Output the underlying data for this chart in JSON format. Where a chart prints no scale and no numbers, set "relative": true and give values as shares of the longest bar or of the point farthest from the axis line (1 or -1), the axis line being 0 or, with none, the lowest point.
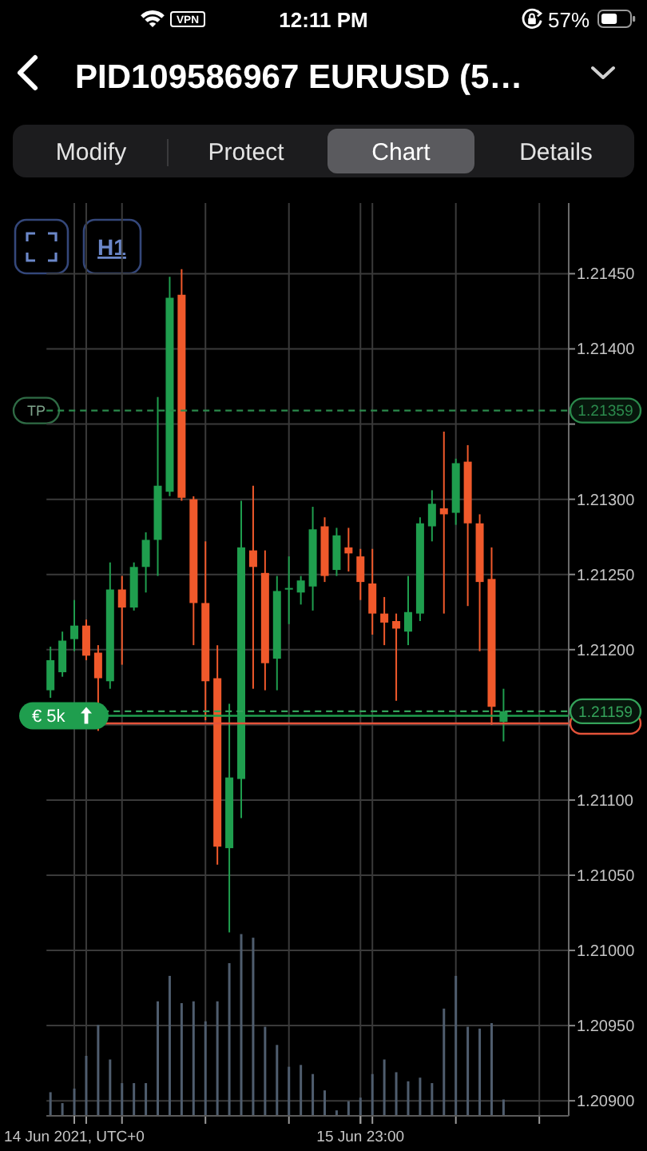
{
  "chart_data": [
    {
      "type": "candlestick",
      "title": "PID109586967 EURUSD (5…",
      "annotations": [
        "12:11 PM",
        "VPN",
        "57%",
        "Modify",
        "Protect",
        "Chart",
        "Details",
        "H1",
        {
          "text": "TP",
          "y": 1.21359
        }
      ],
      "x": [
        "2021-06-14T21:00",
        "2021-06-14T22:00",
        "2021-06-14T23:00",
        "2021-06-15T00:00",
        "2021-06-15T01:00",
        "2021-06-15T02:00",
        "2021-06-15T03:00",
        "2021-06-15T04:00",
        "2021-06-15T05:00",
        "2021-06-15T06:00",
        "2021-06-15T07:00",
        "2021-06-15T08:00",
        "2021-06-15T09:00",
        "2021-06-15T10:00",
        "2021-06-15T11:00",
        "2021-06-15T12:00",
        "2021-06-15T13:00",
        "2021-06-15T14:00",
        "2021-06-15T15:00",
        "2021-06-15T16:00",
        "2021-06-15T17:00",
        "2021-06-15T18:00",
        "2021-06-15T19:00",
        "2021-06-15T20:00",
        "2021-06-15T21:00",
        "2021-06-15T22:00",
        "2021-06-15T23:00",
        "2021-06-16T00:00",
        "2021-06-16T01:00",
        "2021-06-16T02:00",
        "2021-06-16T03:00",
        "2021-06-16T04:00",
        "2021-06-16T05:00",
        "2021-06-16T06:00",
        "2021-06-16T07:00",
        "2021-06-16T08:00",
        "2021-06-16T09:00",
        "2021-06-16T10:00",
        "2021-06-16T11:00"
      ],
      "ohlc": [
        [
          1.21173,
          1.21202,
          1.21168,
          1.21193
        ],
        [
          1.21185,
          1.21212,
          1.21182,
          1.21206
        ],
        [
          1.21207,
          1.21233,
          1.21199,
          1.21216
        ],
        [
          1.21216,
          1.2122,
          1.21193,
          1.21196
        ],
        [
          1.21198,
          1.21203,
          1.21146,
          1.21181
        ],
        [
          1.21179,
          1.21258,
          1.21174,
          1.2124
        ],
        [
          1.2124,
          1.21249,
          1.2119,
          1.21228
        ],
        [
          1.21228,
          1.21258,
          1.21226,
          1.21255
        ],
        [
          1.21255,
          1.21278,
          1.21238,
          1.21273
        ],
        [
          1.21273,
          1.21368,
          1.21249,
          1.21309
        ],
        [
          1.21305,
          1.21448,
          1.21302,
          1.21434
        ],
        [
          1.21436,
          1.21453,
          1.21299,
          1.21301
        ],
        [
          1.213,
          1.21302,
          1.21203,
          1.21231
        ],
        [
          1.21231,
          1.21272,
          1.21153,
          1.21179
        ],
        [
          1.21181,
          1.21203,
          1.21057,
          1.21069
        ],
        [
          1.21068,
          1.21164,
          1.21012,
          1.21115
        ],
        [
          1.21114,
          1.21299,
          1.21088,
          1.21268
        ],
        [
          1.21266,
          1.21309,
          1.21174,
          1.21255
        ],
        [
          1.21251,
          1.21266,
          1.21173,
          1.21191
        ],
        [
          1.21194,
          1.21249,
          1.21173,
          1.21239
        ],
        [
          1.2124,
          1.21262,
          1.21217,
          1.21241
        ],
        [
          1.21238,
          1.21249,
          1.2123,
          1.21246
        ],
        [
          1.21242,
          1.21295,
          1.21226,
          1.2128
        ],
        [
          1.21282,
          1.21288,
          1.21245,
          1.21249
        ],
        [
          1.21253,
          1.21281,
          1.21249,
          1.21276
        ],
        [
          1.21268,
          1.21281,
          1.21252,
          1.21264
        ],
        [
          1.21262,
          1.21267,
          1.21233,
          1.21245
        ],
        [
          1.21244,
          1.21267,
          1.2121,
          1.21224
        ],
        [
          1.21224,
          1.21235,
          1.21203,
          1.21218
        ],
        [
          1.21219,
          1.21224,
          1.21166,
          1.21214
        ],
        [
          1.21212,
          1.21249,
          1.21203,
          1.21225
        ],
        [
          1.21224,
          1.21288,
          1.21219,
          1.21284
        ],
        [
          1.21282,
          1.21306,
          1.21272,
          1.21297
        ],
        [
          1.21294,
          1.21345,
          1.21224,
          1.2129
        ],
        [
          1.21291,
          1.21327,
          1.21283,
          1.21324
        ],
        [
          1.21325,
          1.21336,
          1.21229,
          1.21284
        ],
        [
          1.21284,
          1.2129,
          1.21199,
          1.21245
        ],
        [
          1.21247,
          1.21268,
          1.2115,
          1.21162
        ],
        [
          1.21152,
          1.21174,
          1.21139,
          1.21159
        ]
      ],
      "colors": [
        "#1f9e4e",
        "#1f9e4e",
        "#1f9e4e",
        "#f0592b",
        "#f0592b",
        "#1f9e4e",
        "#f0592b",
        "#1f9e4e",
        "#1f9e4e",
        "#1f9e4e",
        "#1f9e4e",
        "#f0592b",
        "#f0592b",
        "#f0592b",
        "#f0592b",
        "#1f9e4e",
        "#1f9e4e",
        "#f0592b",
        "#f0592b",
        "#1f9e4e",
        "#1f9e4e",
        "#1f9e4e",
        "#1f9e4e",
        "#f0592b",
        "#1f9e4e",
        "#f0592b",
        "#f0592b",
        "#f0592b",
        "#f0592b",
        "#f0592b",
        "#1f9e4e",
        "#1f9e4e",
        "#1f9e4e",
        "#f0592b",
        "#1f9e4e",
        "#f0592b",
        "#f0592b",
        "#f0592b",
        "#1f9e4e"
      ],
      "xlim": [
        "2021-06-14T20:40",
        "2021-06-16T16:28"
      ],
      "xticks": [
        {
          "value": "2021-06-14T23:00",
          "label": "14 Jun 2021, UTC+0"
        },
        {
          "value": "2021-06-15T00:00",
          "label": null
        },
        {
          "value": "2021-06-15T03:00",
          "label": null
        },
        {
          "value": "2021-06-15T10:00",
          "label": null
        },
        {
          "value": "2021-06-15T17:00",
          "label": null
        },
        {
          "value": "2021-06-15T23:00",
          "label": "15 Jun 23:00"
        },
        {
          "value": "2021-06-16T00:00",
          "label": null
        },
        {
          "value": "2021-06-16T07:00",
          "label": null
        },
        {
          "value": "2021-06-16T14:00",
          "label": null
        }
      ],
      "ylim": [
        1.2089,
        1.21497
      ],
      "yticks": [
        {
          "value": 1.2145,
          "label": "1.21450"
        },
        {
          "value": 1.214,
          "label": "1.21400"
        },
        {
          "value": 1.2135,
          "label": null
        },
        {
          "value": 1.213,
          "label": "1.21300"
        },
        {
          "value": 1.2125,
          "label": "1.21250"
        },
        {
          "value": 1.212,
          "label": "1.21200"
        },
        {
          "value": 1.2115,
          "label": null
        },
        {
          "value": 1.211,
          "label": "1.21100"
        },
        {
          "value": 1.2105,
          "label": "1.21050"
        },
        {
          "value": 1.21,
          "label": "1.21000"
        },
        {
          "value": 1.2095,
          "label": "1.20950"
        },
        {
          "value": 1.209,
          "label": "1.20900"
        }
      ],
      "grid": true,
      "ref_lines": [
        {
          "axis": "y",
          "value": 1.21359,
          "label": "1.21359",
          "color": "#2b8a4c",
          "line_style": "dashed"
        },
        {
          "axis": "y",
          "value": 1.21159,
          "label": "1.21159",
          "color": "#34a35a",
          "line_style": "dashed"
        },
        {
          "axis": "y",
          "value": 1.21156,
          "label": "€ 5k",
          "color": "#1f9e4e",
          "line_style": "solid"
        },
        {
          "axis": "y",
          "value": 1.21151,
          "color": "#e4533a",
          "line_style": "solid"
        }
      ]
    },
    {
      "type": "bar",
      "x": [
        "2021-06-14T21:00",
        "2021-06-14T22:00",
        "2021-06-14T23:00",
        "2021-06-15T00:00",
        "2021-06-15T01:00",
        "2021-06-15T02:00",
        "2021-06-15T03:00",
        "2021-06-15T04:00",
        "2021-06-15T05:00",
        "2021-06-15T06:00",
        "2021-06-15T07:00",
        "2021-06-15T08:00",
        "2021-06-15T09:00",
        "2021-06-15T10:00",
        "2021-06-15T11:00",
        "2021-06-15T12:00",
        "2021-06-15T13:00",
        "2021-06-15T14:00",
        "2021-06-15T15:00",
        "2021-06-15T16:00",
        "2021-06-15T17:00",
        "2021-06-15T18:00",
        "2021-06-15T19:00",
        "2021-06-15T20:00",
        "2021-06-15T21:00",
        "2021-06-15T22:00",
        "2021-06-15T23:00",
        "2021-06-16T00:00",
        "2021-06-16T01:00",
        "2021-06-16T02:00",
        "2021-06-16T03:00",
        "2021-06-16T04:00",
        "2021-06-16T05:00",
        "2021-06-16T06:00",
        "2021-06-16T07:00",
        "2021-06-16T08:00",
        "2021-06-16T09:00",
        "2021-06-16T10:00",
        "2021-06-16T11:00"
      ],
      "values": [
        0.13,
        0.07,
        0.15,
        0.33,
        0.5,
        0.31,
        0.18,
        0.18,
        0.18,
        0.63,
        0.77,
        0.62,
        0.63,
        0.52,
        0.63,
        0.84,
        1,
        0.98,
        0.49,
        0.39,
        0.27,
        0.28,
        0.23,
        0.14,
        0.03,
        0.08,
        0.1,
        0.23,
        0.31,
        0.24,
        0.19,
        0.21,
        0.18,
        0.59,
        0.77,
        0.49,
        0.48,
        0.51,
        0.09
      ],
      "xlim": [
        "2021-06-14T20:40",
        "2021-06-16T16:28"
      ],
      "xticks": [
        "2021-06-14T23:00",
        "2021-06-15T23:00"
      ],
      "color": "#4f5d6e",
      "relative": true,
      "tick_labels": false
    }
  ]
}
